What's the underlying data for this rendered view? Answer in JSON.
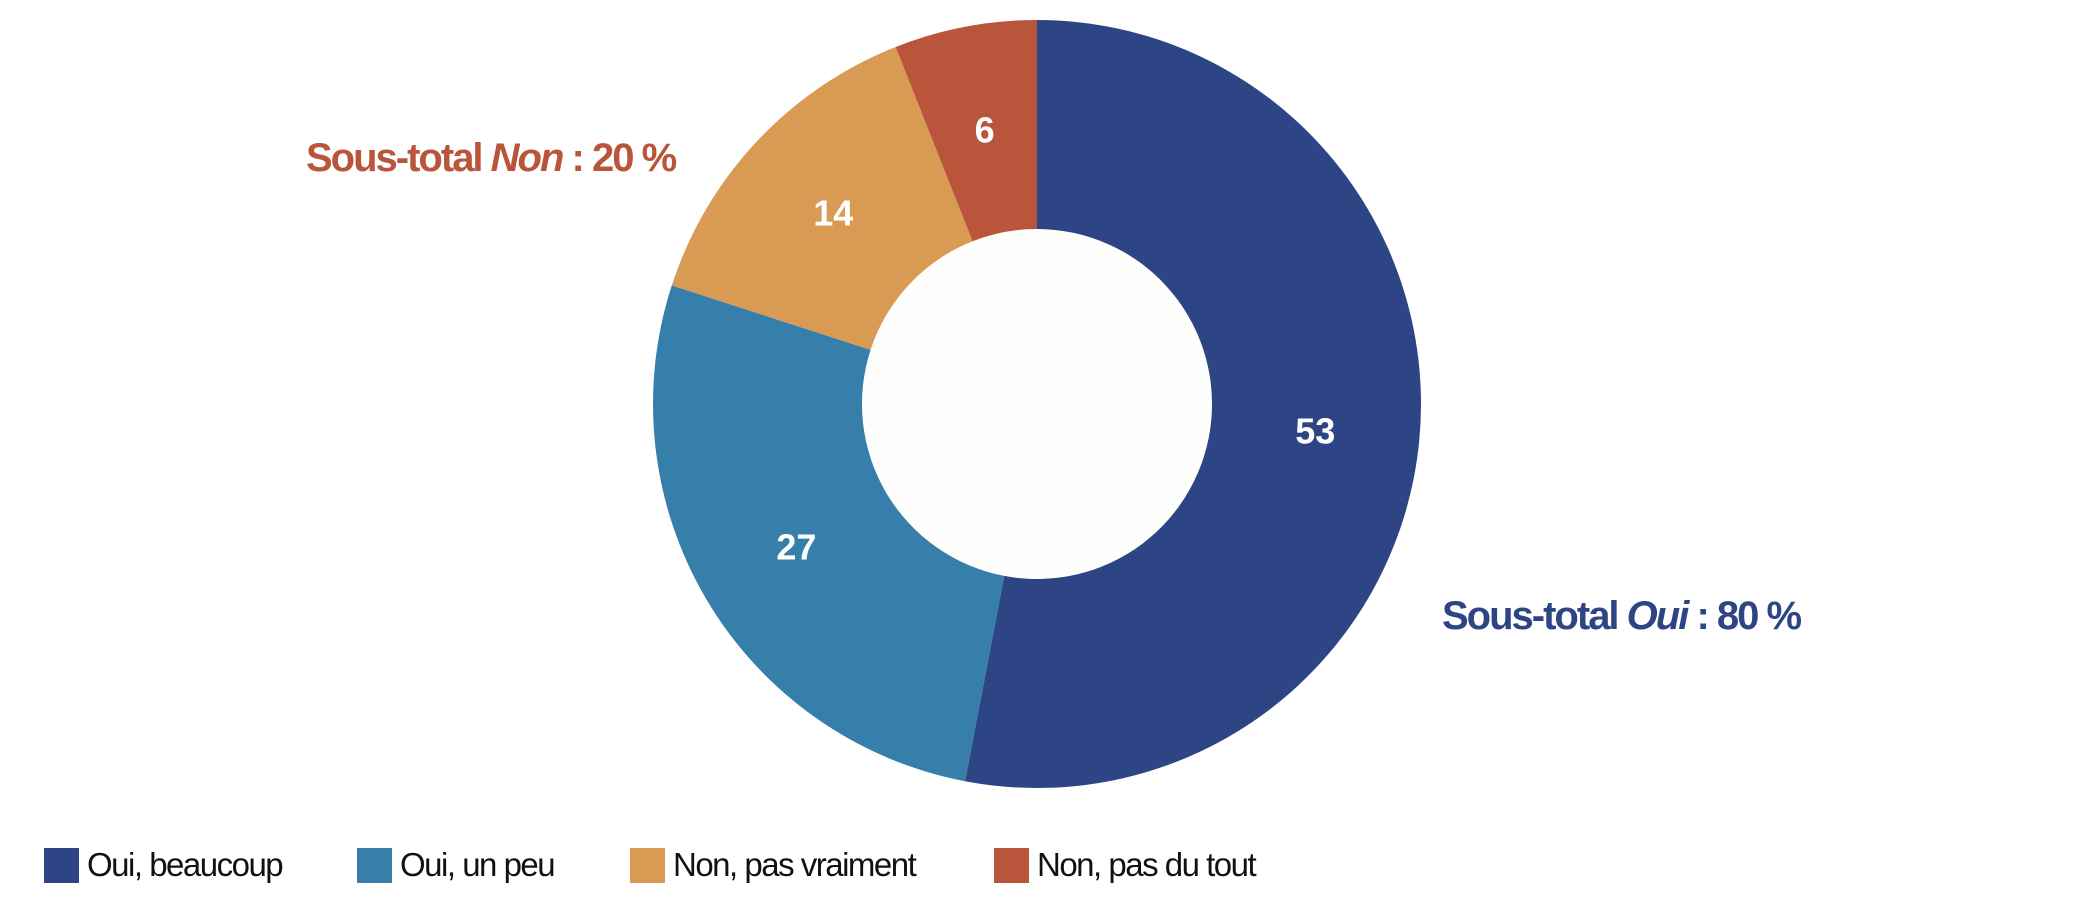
{
  "chart_data": {
    "type": "pie",
    "donut": true,
    "categories": [
      "Oui, beaucoup",
      "Oui, un peu",
      "Non, pas vraiment",
      "Non, pas du tout"
    ],
    "values": [
      53,
      27,
      14,
      6
    ],
    "colors": [
      "#2e4585",
      "#377fab",
      "#d99b53",
      "#b9553a"
    ],
    "legend_position": "bottom-left",
    "annotations": {
      "non": {
        "prefix": "Sous-total ",
        "word": "Non",
        "suffix": " : 20 %",
        "color": "#b9553a"
      },
      "oui": {
        "prefix": "Sous-total ",
        "word": "Oui",
        "suffix": " : 80 %",
        "color": "#2e4585"
      }
    }
  }
}
